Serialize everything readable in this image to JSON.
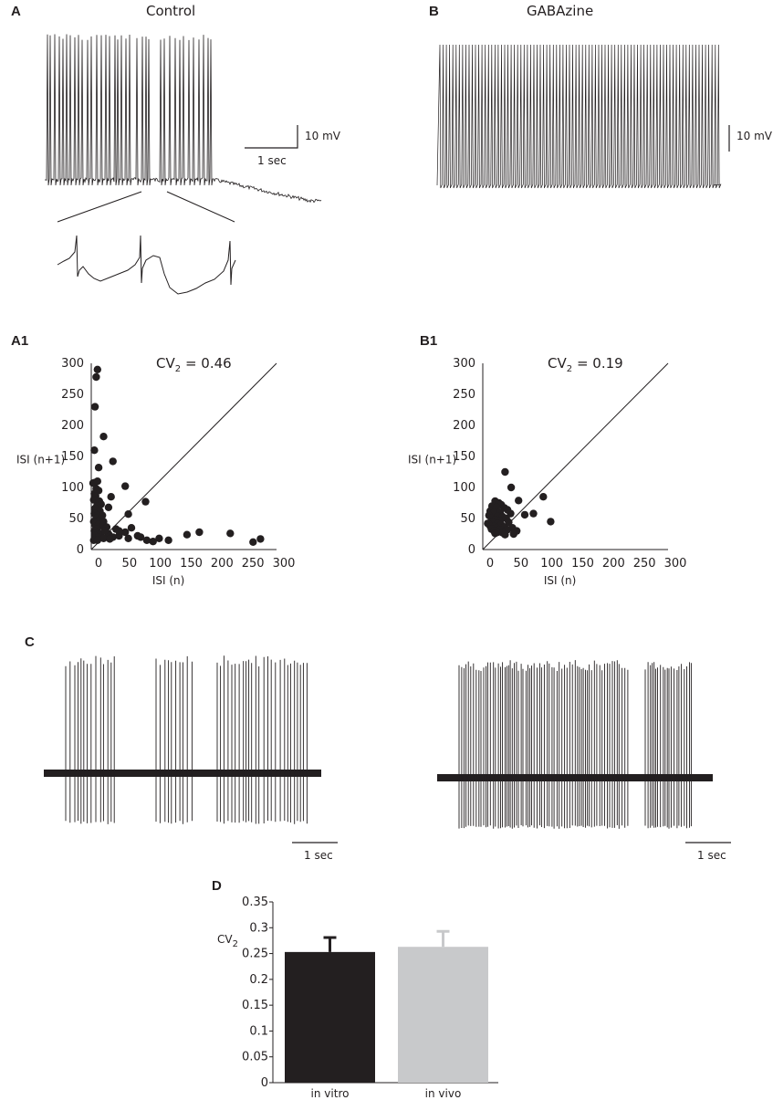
{
  "panels": {
    "A": {
      "letter": "A",
      "title": "Control"
    },
    "B": {
      "letter": "B",
      "title": "GABAzine"
    },
    "A1": {
      "letter": "A1"
    },
    "B1": {
      "letter": "B1"
    },
    "C": {
      "letter": "C"
    },
    "D": {
      "letter": "D"
    }
  },
  "scalebars": {
    "voltage": "10 mV",
    "time": "1 sec"
  },
  "colors": {
    "trace": "#231f20",
    "in_vitro": "#231f20",
    "in_vivo": "#c8c9cb"
  },
  "chart_data": [
    {
      "id": "A1",
      "type": "scatter",
      "annotation_prefix": "CV",
      "annotation_sub": "2",
      "annotation_value": " = 0.46",
      "xlabel": "ISI (n)",
      "ylabel": "ISI (n+1)",
      "xlim": [
        0,
        300
      ],
      "ylim": [
        0,
        300
      ],
      "xticks": [
        0,
        50,
        100,
        150,
        200,
        250,
        300
      ],
      "yticks": [
        0,
        50,
        100,
        150,
        200,
        250,
        300
      ],
      "identity_line": true,
      "points": [
        [
          10,
          290
        ],
        [
          8,
          278
        ],
        [
          6,
          230
        ],
        [
          20,
          182
        ],
        [
          5,
          160
        ],
        [
          35,
          142
        ],
        [
          12,
          132
        ],
        [
          6,
          108
        ],
        [
          3,
          107
        ],
        [
          10,
          110
        ],
        [
          55,
          102
        ],
        [
          8,
          98
        ],
        [
          12,
          95
        ],
        [
          5,
          90
        ],
        [
          7,
          86
        ],
        [
          4,
          80
        ],
        [
          13,
          78
        ],
        [
          32,
          85
        ],
        [
          88,
          77
        ],
        [
          16,
          73
        ],
        [
          9,
          70
        ],
        [
          6,
          66
        ],
        [
          14,
          62
        ],
        [
          28,
          68
        ],
        [
          5,
          58
        ],
        [
          10,
          55
        ],
        [
          60,
          57
        ],
        [
          8,
          50
        ],
        [
          14,
          48
        ],
        [
          20,
          45
        ],
        [
          4,
          45
        ],
        [
          6,
          40
        ],
        [
          12,
          40
        ],
        [
          18,
          38
        ],
        [
          25,
          36
        ],
        [
          9,
          33
        ],
        [
          5,
          30
        ],
        [
          40,
          33
        ],
        [
          65,
          35
        ],
        [
          55,
          28
        ],
        [
          7,
          27
        ],
        [
          16,
          26
        ],
        [
          28,
          25
        ],
        [
          35,
          20
        ],
        [
          45,
          22
        ],
        [
          6,
          22
        ],
        [
          12,
          20
        ],
        [
          20,
          18
        ],
        [
          60,
          18
        ],
        [
          75,
          22
        ],
        [
          80,
          20
        ],
        [
          110,
          18
        ],
        [
          125,
          15
        ],
        [
          155,
          24
        ],
        [
          175,
          28
        ],
        [
          225,
          26
        ],
        [
          262,
          12
        ],
        [
          274,
          17
        ],
        [
          90,
          15
        ],
        [
          100,
          13
        ],
        [
          4,
          15
        ],
        [
          10,
          15
        ],
        [
          30,
          17
        ],
        [
          45,
          30
        ],
        [
          18,
          55
        ],
        [
          22,
          30
        ]
      ]
    },
    {
      "id": "B1",
      "type": "scatter",
      "annotation_prefix": "CV",
      "annotation_sub": "2",
      "annotation_value": " = 0.19",
      "xlabel": "ISI (n)",
      "ylabel": "ISI (n+1)",
      "xlim": [
        0,
        300
      ],
      "ylim": [
        0,
        300
      ],
      "xticks": [
        0,
        50,
        100,
        150,
        200,
        250,
        300
      ],
      "yticks": [
        0,
        50,
        100,
        150,
        200,
        250,
        300
      ],
      "identity_line": true,
      "points": [
        [
          36,
          125
        ],
        [
          46,
          100
        ],
        [
          98,
          85
        ],
        [
          58,
          79
        ],
        [
          20,
          78
        ],
        [
          26,
          75
        ],
        [
          30,
          72
        ],
        [
          15,
          70
        ],
        [
          22,
          68
        ],
        [
          35,
          67
        ],
        [
          40,
          64
        ],
        [
          12,
          62
        ],
        [
          18,
          60
        ],
        [
          28,
          60
        ],
        [
          45,
          58
        ],
        [
          82,
          58
        ],
        [
          68,
          56
        ],
        [
          10,
          55
        ],
        [
          24,
          54
        ],
        [
          32,
          53
        ],
        [
          14,
          50
        ],
        [
          38,
          50
        ],
        [
          20,
          48
        ],
        [
          28,
          46
        ],
        [
          110,
          45
        ],
        [
          16,
          44
        ],
        [
          42,
          44
        ],
        [
          8,
          42
        ],
        [
          24,
          42
        ],
        [
          30,
          40
        ],
        [
          12,
          38
        ],
        [
          19,
          37
        ],
        [
          35,
          36
        ],
        [
          48,
          35
        ],
        [
          22,
          34
        ],
        [
          14,
          33
        ],
        [
          28,
          32
        ],
        [
          40,
          32
        ],
        [
          55,
          30
        ],
        [
          18,
          30
        ],
        [
          24,
          28
        ],
        [
          32,
          27
        ],
        [
          50,
          25
        ],
        [
          20,
          26
        ],
        [
          36,
          24
        ]
      ]
    },
    {
      "id": "D",
      "type": "bar",
      "ylabel_prefix": "CV",
      "ylabel_sub": "2",
      "categories": [
        "in vitro",
        "in vivo"
      ],
      "values": [
        0.253,
        0.263
      ],
      "errors": [
        0.028,
        0.03
      ],
      "ylim": [
        0,
        0.35
      ],
      "yticks": [
        "0",
        "0.05",
        "0.1",
        "0.15",
        "0.2",
        "0.25",
        "0.3",
        "0.35"
      ]
    }
  ]
}
